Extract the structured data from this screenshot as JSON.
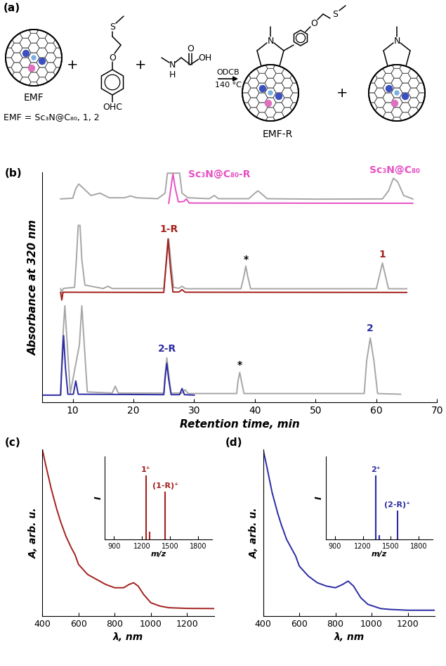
{
  "scheme": {
    "label": "(a)",
    "reactant_label": "EMF",
    "definition": "EMF = Sc₃N@C₈₀, 1, 2",
    "plus": "+",
    "aldehyde_atoms": [
      "O",
      "S",
      "OHC"
    ],
    "sarcosine_atoms": [
      "N",
      "H",
      "O",
      "OH"
    ],
    "conditions": [
      "ODCB",
      "140 °C"
    ],
    "product_label": "EMF-R",
    "product_atoms": [
      "N",
      "O",
      "S"
    ],
    "byproduct_atoms": [
      "N"
    ]
  },
  "chart_data": [
    {
      "panel": "(b)",
      "type": "line",
      "xlabel": "Retention time, min",
      "ylabel": "Absorbance at 320 nm",
      "xlim": [
        5,
        70
      ],
      "xticks": [
        10,
        20,
        30,
        40,
        50,
        60,
        70
      ],
      "ylim": [
        0,
        100
      ],
      "tick_labels": "x",
      "series": [
        {
          "color": "#a6a6a6",
          "x": [
            8,
            10,
            10.5,
            11,
            11.8,
            13,
            14.5,
            16,
            18.5,
            19.5,
            20.5,
            24,
            25.2,
            25.6,
            27.6,
            28,
            29,
            32.5,
            33.3,
            34,
            39,
            40,
            40.5,
            41,
            42,
            50,
            61,
            62,
            62.8,
            63.5,
            64.5,
            66
          ],
          "values": [
            88.5,
            88.8,
            93,
            95,
            93,
            90,
            91,
            89,
            89,
            89.8,
            89,
            88.6,
            91,
            99.7,
            99.7,
            91,
            89,
            88.6,
            90,
            88.6,
            88.6,
            91,
            92,
            91,
            88.6,
            88.4,
            88.5,
            92,
            97.5,
            96,
            90,
            88.5
          ]
        },
        {
          "color": "#e651c4",
          "x": [
            25.8,
            26.1,
            26.5,
            26.9,
            27.4,
            28.3,
            28.7,
            29.2,
            66
          ],
          "values": [
            86.6,
            92,
            99.4,
            93,
            87.2,
            87.4,
            88.5,
            86.7,
            86.6
          ]
        },
        {
          "color": "#a6a6a6",
          "x": [
            8,
            8.2,
            8.4,
            8.6,
            10.3,
            10.6,
            10.9,
            11.2,
            11.5,
            12,
            15,
            15.8,
            16.5,
            25,
            25.4,
            25.8,
            26.2,
            26.6,
            27.5,
            28,
            28.5,
            29,
            37.7,
            38.2,
            38.5,
            38.8,
            39.3,
            60,
            60.5,
            61,
            61.5,
            62,
            65
          ],
          "values": [
            49.4,
            47.5,
            49.4,
            49.6,
            50,
            62,
            77,
            77,
            62,
            51,
            49.5,
            50.5,
            49.5,
            49.5,
            60,
            71,
            60,
            50,
            49.6,
            50.5,
            49.5,
            49.4,
            49.4,
            55,
            59.3,
            55,
            49.4,
            49.4,
            55,
            60.6,
            55,
            49.4,
            49.4
          ]
        },
        {
          "color": "#a3201e",
          "x": [
            8,
            8.2,
            8.4,
            8.6,
            25,
            25.3,
            25.7,
            26.1,
            26.5,
            27.5,
            28,
            28.5,
            65
          ],
          "values": [
            47.8,
            44.5,
            47.8,
            47.9,
            47.8,
            58,
            71.1,
            58,
            48,
            48,
            49,
            47.9,
            47.8
          ]
        },
        {
          "color": "#a6a6a6",
          "x": [
            8,
            8.3,
            8.7,
            9.1,
            9.6,
            11.1,
            11.5,
            11.9,
            12.4,
            16.5,
            17,
            17.5,
            25,
            25.2,
            25.5,
            25.8,
            26.2,
            28,
            28.5,
            29,
            37,
            37.2,
            37.5,
            37.8,
            38.2,
            58,
            58.4,
            59,
            59.6,
            60.2,
            64
          ],
          "values": [
            3.5,
            25,
            42,
            25,
            4,
            25,
            42,
            25,
            4.5,
            4,
            7,
            4,
            4,
            12,
            19.3,
            12,
            4,
            4,
            5.5,
            3.8,
            3.8,
            9,
            13,
            9,
            3.8,
            3.8,
            18,
            28,
            18,
            3.8,
            3.5
          ]
        },
        {
          "color": "#2b2ba3",
          "x": [
            5,
            8,
            8.2,
            8.5,
            8.8,
            9.2,
            10.1,
            10.5,
            10.9,
            25,
            25.2,
            25.5,
            25.8,
            26.2,
            27.6,
            28,
            28.4,
            30
          ],
          "values": [
            3.1,
            3.1,
            15,
            29,
            15,
            3.5,
            3.5,
            9.3,
            3.5,
            3.3,
            10,
            17,
            10,
            3.3,
            3.3,
            6,
            3.3,
            3.1
          ]
        }
      ],
      "annotations": [
        {
          "text": "Sc₃N@C₈₀-R",
          "x": 29,
          "y": 97,
          "color": "#e651c4"
        },
        {
          "text": "Sc₃N@C₈₀",
          "x": 63,
          "y": 99,
          "color": "#e651c4"
        },
        {
          "text": "1-R",
          "x": 25.8,
          "y": 73,
          "color": "#a3201e"
        },
        {
          "text": "1",
          "x": 61,
          "y": 62,
          "color": "#a3201e"
        },
        {
          "text": "*",
          "x": 38.5,
          "y": 60,
          "color": "#000000"
        },
        {
          "text": "2-R",
          "x": 25.5,
          "y": 21,
          "color": "#2b2ba3"
        },
        {
          "text": "2",
          "x": 59,
          "y": 30,
          "color": "#2b2ba3"
        },
        {
          "text": "*",
          "x": 37.5,
          "y": 14,
          "color": "#000000"
        }
      ]
    },
    {
      "panel": "(c)",
      "type": "line",
      "xlabel": "λ, nm",
      "ylabel": "A, arb. u.",
      "xlim": [
        400,
        1350
      ],
      "xticks": [
        400,
        600,
        800,
        1000,
        1200
      ],
      "ylim": [
        0,
        1
      ],
      "tick_labels": "x",
      "series": [
        {
          "color": "#a3201e",
          "x": [
            400,
            420,
            450,
            480,
            500,
            530,
            560,
            580,
            600,
            650,
            700,
            750,
            800,
            850,
            880,
            905,
            930,
            960,
            1000,
            1050,
            1100,
            1200,
            1350
          ],
          "values": [
            1.0,
            0.9,
            0.76,
            0.64,
            0.57,
            0.48,
            0.41,
            0.37,
            0.31,
            0.25,
            0.22,
            0.19,
            0.17,
            0.17,
            0.19,
            0.2,
            0.18,
            0.13,
            0.08,
            0.06,
            0.05,
            0.046,
            0.045
          ]
        }
      ],
      "inset": {
        "type": "stem",
        "xlabel": "m/z",
        "ylabel": "I",
        "xlim": [
          800,
          1950
        ],
        "xticks": [
          900,
          1200,
          1500,
          1800
        ],
        "ylim": [
          0,
          1.3
        ],
        "tick_labels": "x",
        "color": "#a3201e",
        "x": [
          1240,
          1280,
          1450
        ],
        "values": [
          1.0,
          0.12,
          0.75
        ],
        "annotations": [
          {
            "text": "1⁺",
            "x": 1240,
            "y": 1.03,
            "color": "#a3201e"
          },
          {
            "text": "(1-R)⁺",
            "x": 1450,
            "y": 0.78,
            "color": "#a3201e"
          }
        ]
      }
    },
    {
      "panel": "(d)",
      "type": "line",
      "xlabel": "λ, nm",
      "ylabel": "A, arb. u.",
      "xlim": [
        400,
        1350
      ],
      "xticks": [
        400,
        600,
        800,
        1000,
        1200
      ],
      "ylim": [
        0,
        1
      ],
      "tick_labels": "x",
      "series": [
        {
          "color": "#2b2ba3",
          "x": [
            400,
            420,
            450,
            480,
            500,
            530,
            560,
            580,
            600,
            650,
            700,
            750,
            800,
            840,
            870,
            900,
            940,
            980,
            1050,
            1100,
            1200,
            1350
          ],
          "values": [
            1.0,
            0.9,
            0.74,
            0.62,
            0.55,
            0.46,
            0.4,
            0.36,
            0.3,
            0.24,
            0.2,
            0.18,
            0.17,
            0.19,
            0.21,
            0.18,
            0.11,
            0.07,
            0.045,
            0.04,
            0.035,
            0.035
          ]
        }
      ],
      "inset": {
        "type": "stem",
        "xlabel": "m/z",
        "ylabel": "I",
        "xlim": [
          800,
          1950
        ],
        "xticks": [
          900,
          1200,
          1500,
          1800
        ],
        "ylim": [
          0,
          1.3
        ],
        "tick_labels": "x",
        "color": "#2b2ba3",
        "x": [
          1340,
          1380,
          1570
        ],
        "values": [
          1.0,
          0.07,
          0.45
        ],
        "annotations": [
          {
            "text": "2⁺",
            "x": 1340,
            "y": 1.03,
            "color": "#2b2ba3"
          },
          {
            "text": "(2-R)⁺",
            "x": 1570,
            "y": 0.48,
            "color": "#2b2ba3"
          }
        ]
      }
    }
  ]
}
